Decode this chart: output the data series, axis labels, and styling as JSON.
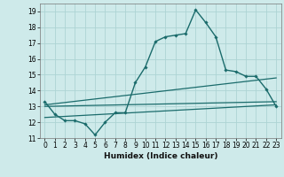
{
  "xlabel": "Humidex (Indice chaleur)",
  "background_color": "#ceeaea",
  "grid_color": "#add4d4",
  "line_color": "#1a6b6b",
  "xlim": [
    -0.5,
    23.5
  ],
  "ylim": [
    11,
    19.5
  ],
  "xticks": [
    0,
    1,
    2,
    3,
    4,
    5,
    6,
    7,
    8,
    9,
    10,
    11,
    12,
    13,
    14,
    15,
    16,
    17,
    18,
    19,
    20,
    21,
    22,
    23
  ],
  "yticks": [
    11,
    12,
    13,
    14,
    15,
    16,
    17,
    18,
    19
  ],
  "line1_x": [
    0,
    1,
    2,
    3,
    4,
    5,
    6,
    7,
    8,
    9,
    10,
    11,
    12,
    13,
    14,
    15,
    16,
    17,
    18,
    19,
    20,
    21,
    22,
    23
  ],
  "line1_y": [
    13.3,
    12.5,
    12.1,
    12.1,
    11.9,
    11.2,
    12.0,
    12.6,
    12.6,
    14.5,
    15.5,
    17.1,
    17.4,
    17.5,
    17.6,
    19.1,
    18.3,
    17.4,
    15.3,
    15.2,
    14.9,
    14.9,
    14.1,
    13.0
  ],
  "line2_x": [
    0,
    23
  ],
  "line2_y": [
    13.0,
    13.3
  ],
  "line3_x": [
    0,
    23
  ],
  "line3_y": [
    13.1,
    14.8
  ],
  "line4_x": [
    0,
    23
  ],
  "line4_y": [
    12.3,
    13.1
  ],
  "tick_fontsize": 5.5,
  "xlabel_fontsize": 6.5
}
